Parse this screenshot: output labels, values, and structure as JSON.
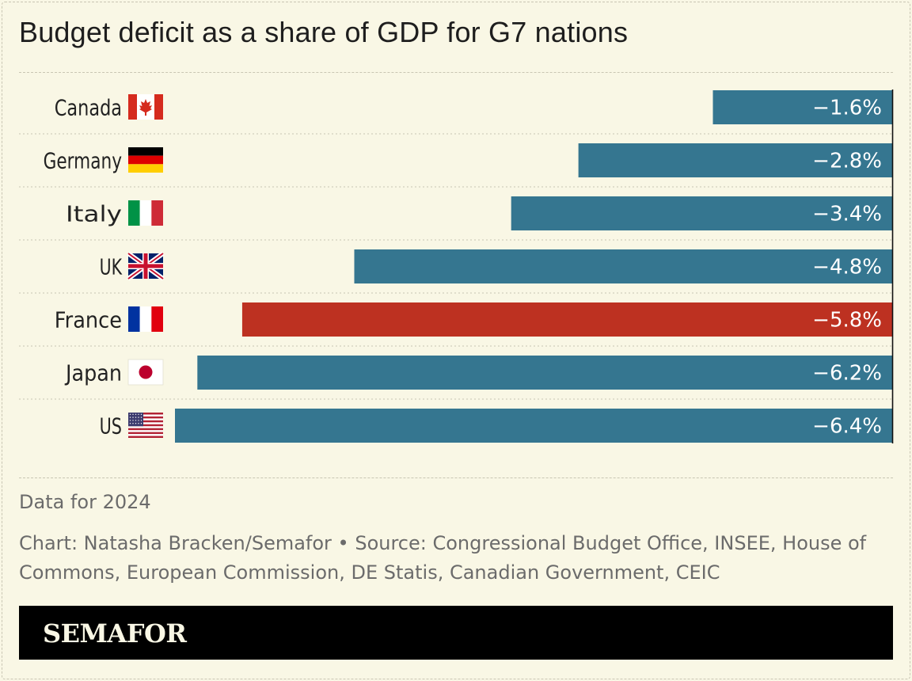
{
  "chart_data": {
    "type": "bar",
    "orientation": "horizontal",
    "title": "Budget deficit as a share of GDP for G7 nations",
    "categories": [
      "Canada",
      "Germany",
      "Italy",
      "UK",
      "France",
      "Japan",
      "US"
    ],
    "values": [
      -1.6,
      -2.8,
      -3.4,
      -4.8,
      -5.8,
      -6.2,
      -6.4
    ],
    "value_labels": [
      "−1.6%",
      "−2.8%",
      "−3.4%",
      "−4.8%",
      "−5.8%",
      "−6.2%",
      "−6.4%"
    ],
    "flags": [
      "canada-flag-icon",
      "germany-flag-icon",
      "italy-flag-icon",
      "uk-flag-icon",
      "france-flag-icon",
      "japan-flag-icon",
      "us-flag-icon"
    ],
    "xlim": [
      -6.4,
      0
    ],
    "highlight": "France",
    "colors": {
      "bar": "#357690",
      "highlight": "#bd3121",
      "label": "#ffffff"
    },
    "grid": false
  },
  "note": "Data for 2024",
  "credit": "Chart: Natasha Bracken/Semafor • Source: Congressional Budget Office, INSEE, House of Commons, European Commission, DE Statis, Canadian Government, CEIC",
  "brand": "SEMAFOR"
}
